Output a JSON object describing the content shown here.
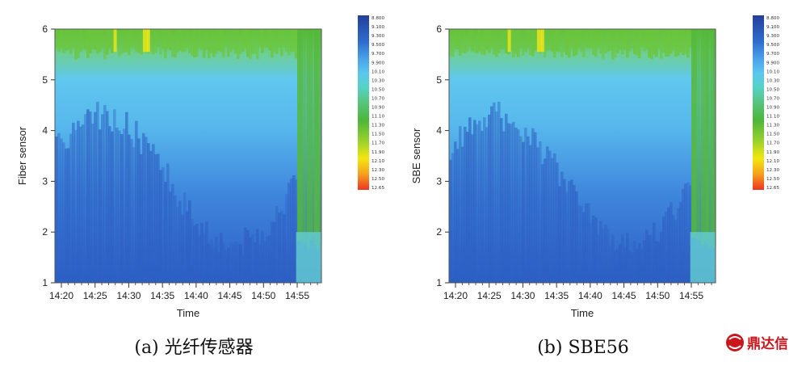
{
  "colors": {
    "scale": [
      "#233f9a",
      "#2f6ccd",
      "#4aa3e8",
      "#5cc6ee",
      "#57d2c8",
      "#57c47d",
      "#4cb63b",
      "#9ad12d",
      "#f3e60f",
      "#f5a01d",
      "#ed3523"
    ],
    "logo": "#c8161d"
  },
  "colorbar": {
    "labels": [
      "8.800",
      "9.100",
      "9.300",
      "9.500",
      "9.700",
      "9.900",
      "10.10",
      "10.30",
      "10.50",
      "10.70",
      "10.90",
      "11.10",
      "11.30",
      "11.50",
      "11.70",
      "11.90",
      "12.10",
      "12.30",
      "12.50",
      "12.65"
    ]
  },
  "chart_data": [
    {
      "type": "heatmap",
      "xlabel": "Time",
      "ylabel": "Fiber sensor",
      "xticks": [
        "14:20",
        "14:25",
        "14:30",
        "14:35",
        "14:40",
        "14:45",
        "14:50",
        "14:55"
      ],
      "yticks": [
        "1",
        "2",
        "3",
        "4",
        "5",
        "6"
      ],
      "ylim": [
        1,
        6
      ],
      "value_range": [
        8.8,
        12.65
      ],
      "caption": "(a) 光纤传感器"
    },
    {
      "type": "heatmap",
      "xlabel": "Time",
      "ylabel": "SBE sensor",
      "xticks": [
        "14:20",
        "14:25",
        "14:30",
        "14:35",
        "14:40",
        "14:45",
        "14:50",
        "14:55"
      ],
      "yticks": [
        "1",
        "2",
        "3",
        "4",
        "5",
        "6"
      ],
      "ylim": [
        1,
        6
      ],
      "value_range": [
        8.8,
        12.65
      ],
      "caption": "(b) SBE56"
    }
  ],
  "logo": {
    "text": "鼎达信"
  }
}
